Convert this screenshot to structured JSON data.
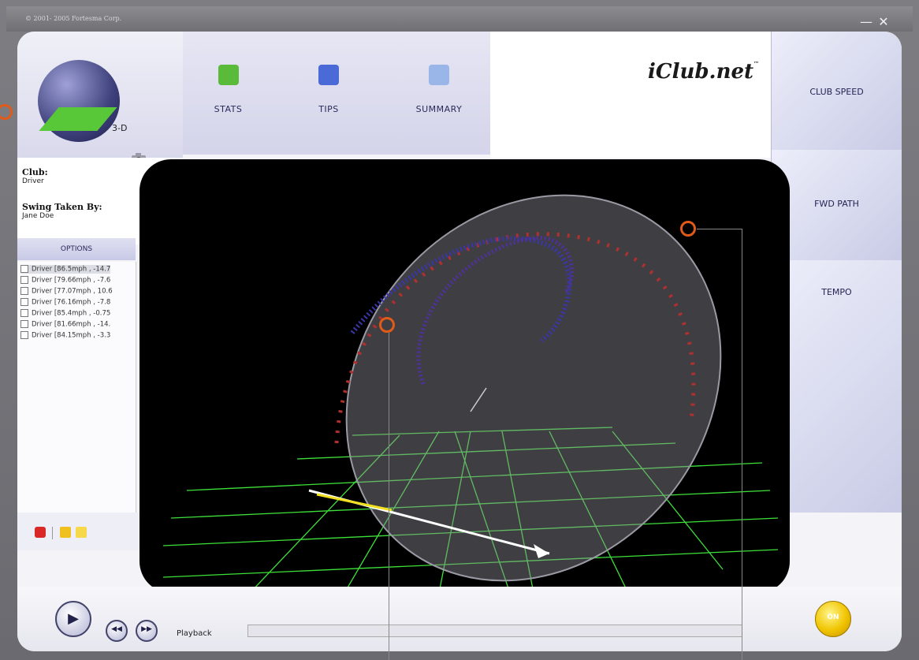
{
  "window": {
    "copyright": "© 2001- 2005 Fortesma Corp.",
    "minimize_glyph": "—",
    "close_glyph": "✕"
  },
  "header": {
    "logo": "iClub.net",
    "logo_tm": "™",
    "tabs": [
      {
        "label": "STATS",
        "icon": "stats-chart-icon"
      },
      {
        "label": "TIPS",
        "icon": "tips-checklist-icon"
      },
      {
        "label": "SUMMARY",
        "icon": "summary-calendar-icon"
      }
    ],
    "view_3d_label": "3-D"
  },
  "info": {
    "club_label": "Club:",
    "club_value": "Driver",
    "taken_by_label": "Swing Taken By:",
    "taken_by_value": "Jane Doe"
  },
  "options_label": "OPTIONS",
  "swings": [
    "Driver [86.5mph , -14.7",
    "Driver [79.66mph , -7.6",
    "Driver [77.07mph , 10.6",
    "Driver [76.16mph , -7.8",
    "Driver [85.4mph , -0.75",
    "Driver [81.66mph , -14.",
    "Driver [84.15mph , -3.3"
  ],
  "right_buttons": {
    "club_speed": "CLUB SPEED",
    "fwd_path": "FWD PATH",
    "tempo": "TEMPO"
  },
  "footer": {
    "playback_label": "Playback",
    "on_label": "ON",
    "play_glyph": "▶",
    "rewind_glyph": "◀◀",
    "forward_glyph": "▶▶"
  },
  "colors": {
    "accent": "#2a2a5a",
    "marker": "#e05a1a",
    "grid": "#3ee03a",
    "on_button": "#f0c400"
  }
}
